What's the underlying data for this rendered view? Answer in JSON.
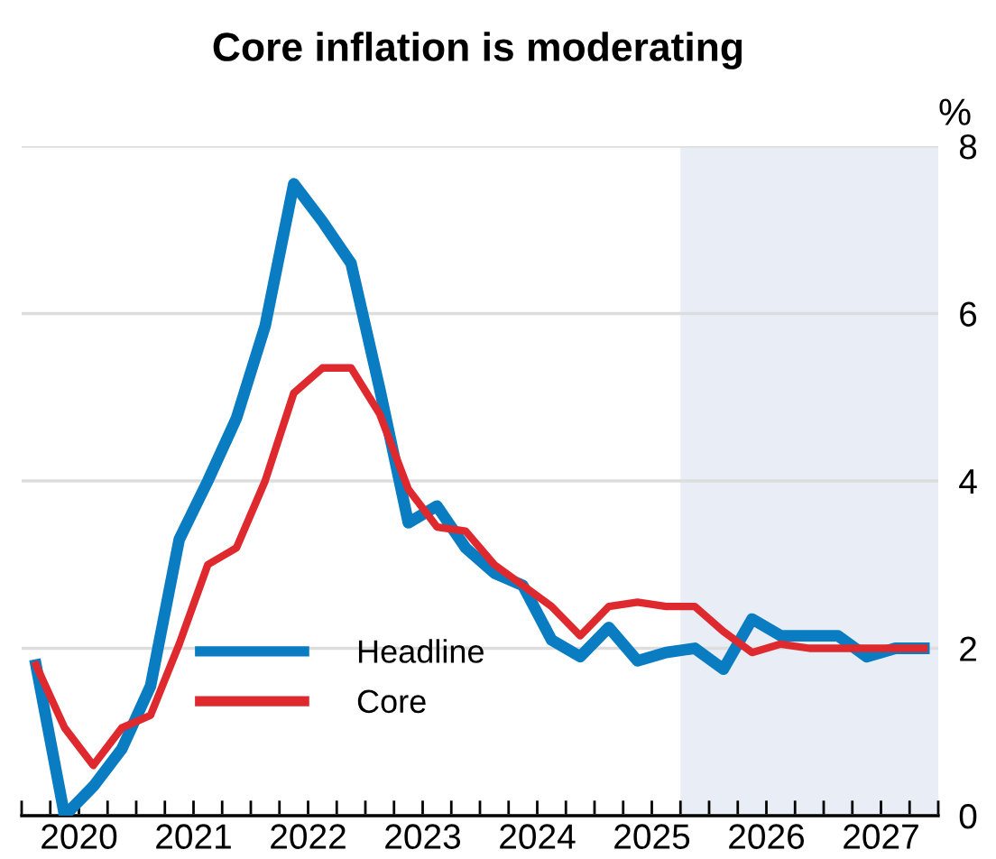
{
  "chart_data": {
    "type": "line",
    "title": "Core inflation is moderating",
    "ylabel": "%",
    "x": [
      2020.125,
      2020.375,
      2020.625,
      2020.875,
      2021.125,
      2021.375,
      2021.625,
      2021.875,
      2022.125,
      2022.375,
      2022.625,
      2022.875,
      2023.125,
      2023.375,
      2023.625,
      2023.875,
      2024.125,
      2024.375,
      2024.625,
      2024.875,
      2025.125,
      2025.375,
      2025.625,
      2025.875,
      2026.125,
      2026.375,
      2026.625,
      2026.875,
      2027.125,
      2027.375,
      2027.625,
      2027.875
    ],
    "series": [
      {
        "name": "Headline",
        "color": "#0a7cc1",
        "values": [
          1.8,
          0.0,
          0.35,
          0.8,
          1.55,
          3.3,
          4.0,
          4.75,
          5.85,
          7.55,
          7.1,
          6.6,
          5.1,
          3.5,
          3.7,
          3.2,
          2.9,
          2.75,
          2.1,
          1.9,
          2.25,
          1.85,
          1.95,
          2.0,
          1.75,
          2.35,
          2.15,
          2.15,
          2.15,
          1.9,
          2.0,
          2.0
        ]
      },
      {
        "name": "Core",
        "color": "#de2a2f",
        "values": [
          1.8,
          1.05,
          0.6,
          1.05,
          1.2,
          2.05,
          3.0,
          3.2,
          4.0,
          5.05,
          5.35,
          5.35,
          4.8,
          3.9,
          3.45,
          3.4,
          3.0,
          2.75,
          2.5,
          2.15,
          2.5,
          2.55,
          2.5,
          2.5,
          2.2,
          1.95,
          2.05,
          2.0,
          2.0,
          2.0,
          2.0,
          2.0
        ]
      }
    ],
    "xlim": [
      2020,
      2028
    ],
    "xticks": [
      {
        "value": 2020,
        "label": null
      },
      {
        "value": 2020.25,
        "label": null
      },
      {
        "value": 2020.5,
        "label": "2020"
      },
      {
        "value": 2020.75,
        "label": null
      },
      {
        "value": 2021,
        "label": null
      },
      {
        "value": 2021.25,
        "label": null
      },
      {
        "value": 2021.5,
        "label": "2021"
      },
      {
        "value": 2021.75,
        "label": null
      },
      {
        "value": 2022,
        "label": null
      },
      {
        "value": 2022.25,
        "label": null
      },
      {
        "value": 2022.5,
        "label": "2022"
      },
      {
        "value": 2022.75,
        "label": null
      },
      {
        "value": 2023,
        "label": null
      },
      {
        "value": 2023.25,
        "label": null
      },
      {
        "value": 2023.5,
        "label": "2023"
      },
      {
        "value": 2023.75,
        "label": null
      },
      {
        "value": 2024,
        "label": null
      },
      {
        "value": 2024.25,
        "label": null
      },
      {
        "value": 2024.5,
        "label": "2024"
      },
      {
        "value": 2024.75,
        "label": null
      },
      {
        "value": 2025,
        "label": null
      },
      {
        "value": 2025.25,
        "label": null
      },
      {
        "value": 2025.5,
        "label": "2025"
      },
      {
        "value": 2025.75,
        "label": null
      },
      {
        "value": 2026,
        "label": null
      },
      {
        "value": 2026.25,
        "label": null
      },
      {
        "value": 2026.5,
        "label": "2026"
      },
      {
        "value": 2026.75,
        "label": null
      },
      {
        "value": 2027,
        "label": null
      },
      {
        "value": 2027.25,
        "label": null
      },
      {
        "value": 2027.5,
        "label": "2027"
      },
      {
        "value": 2027.75,
        "label": null
      },
      {
        "value": 2028,
        "label": null
      }
    ],
    "ylim": [
      0,
      8
    ],
    "yticks": [
      0,
      2,
      4,
      6,
      8
    ],
    "bands": [
      {
        "axis": "x",
        "from": 2025.75,
        "to": 2028,
        "label": null,
        "color": "#e9edf5"
      }
    ],
    "grid": "y",
    "legend": "bottom",
    "marker": "none",
    "line_style": "solid"
  }
}
